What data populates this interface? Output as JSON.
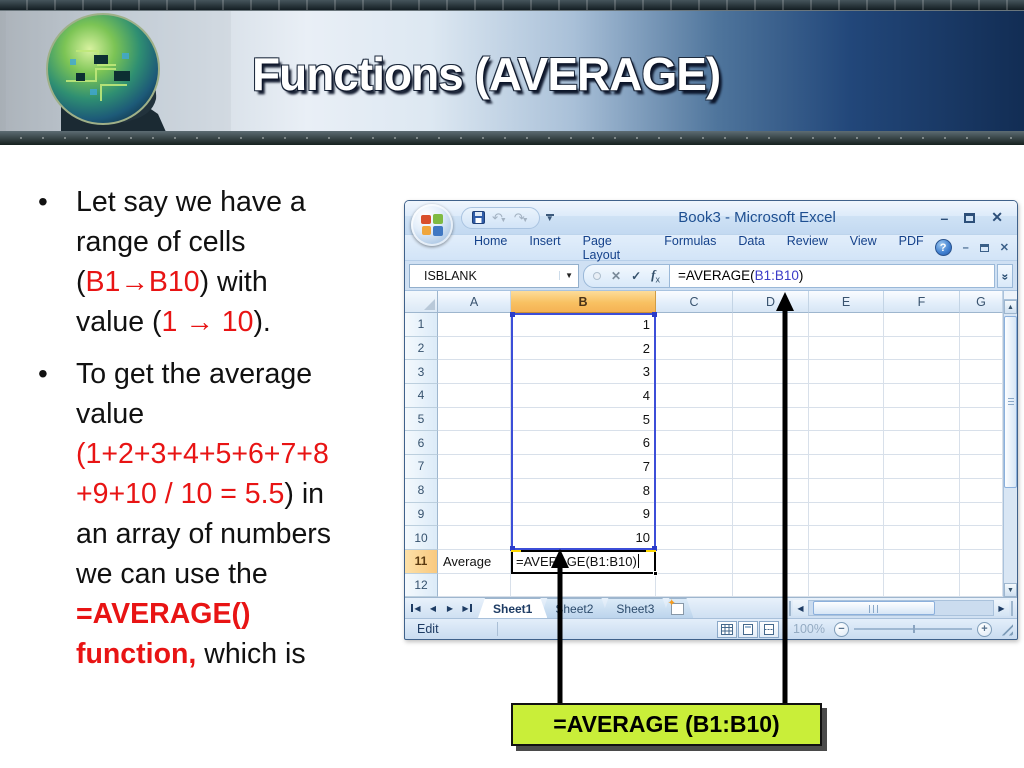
{
  "slide": {
    "title": "Functions (AVERAGE)"
  },
  "bullets": [
    {
      "lines": [
        [
          {
            "t": "Let say we have a",
            "c": "k"
          }
        ],
        [
          {
            "t": "range of cells",
            "c": "k"
          }
        ],
        [
          {
            "t": "(",
            "c": "k"
          },
          {
            "t": "B1→B10",
            "c": "r"
          },
          {
            "t": ") with",
            "c": "k"
          }
        ],
        [
          {
            "t": "value (",
            "c": "k"
          },
          {
            "t": "1 → 10",
            "c": "r"
          },
          {
            "t": ").",
            "c": "k"
          }
        ]
      ]
    },
    {
      "lines": [
        [
          {
            "t": "To get the average",
            "c": "k"
          }
        ],
        [
          {
            "t": "value",
            "c": "k"
          }
        ],
        [
          {
            "t": "(1+2+3+4+5+6+7+8",
            "c": "r"
          }
        ],
        [
          {
            "t": "+9+10 / 10 = 5.5",
            "c": "r"
          },
          {
            "t": ") in",
            "c": "k"
          }
        ],
        [
          {
            "t": "an array of numbers",
            "c": "k"
          }
        ],
        [
          {
            "t": "we can use the",
            "c": "k"
          }
        ],
        [
          {
            "t": "=AVERAGE()",
            "c": "rb"
          }
        ],
        [
          {
            "t": "function,",
            "c": "rb"
          },
          {
            "t": " which is",
            "c": "k"
          }
        ]
      ]
    }
  ],
  "excel": {
    "window_title": "Book3 - Microsoft Excel",
    "ribbon_tabs": [
      "Home",
      "Insert",
      "Page Layout",
      "Formulas",
      "Data",
      "Review",
      "View",
      "PDF"
    ],
    "name_box": "ISBLANK",
    "formula": {
      "prefix": "=AVERAGE(",
      "range": "B1:B10",
      "suffix": ")"
    },
    "columns": [
      "A",
      "B",
      "C",
      "D",
      "E",
      "F",
      "G"
    ],
    "selected_column": "B",
    "selected_row": "11",
    "row_count": 12,
    "b_values": [
      "1",
      "2",
      "3",
      "4",
      "5",
      "6",
      "7",
      "8",
      "9",
      "10"
    ],
    "a11_label": "Average",
    "b11_formula": "=AVERAGE(B1:B10)",
    "sheet_tabs": [
      "Sheet1",
      "Sheet2",
      "Sheet3"
    ],
    "active_sheet": "Sheet1",
    "status": {
      "mode": "Edit",
      "zoom": "100%"
    }
  },
  "callout": {
    "text": "=AVERAGE (B1:B10)"
  },
  "icons": {
    "dropdown": "▼",
    "undo": "↶",
    "redo": "↷",
    "cancel": "✕",
    "enter": "✓",
    "fx_f": "f",
    "fx_x": "x",
    "help": "?",
    "minimize": "–",
    "close": "✕",
    "chevron_double": "»",
    "up": "▲",
    "down": "▼",
    "left": "◀",
    "right": "▶",
    "sparkle": "✦"
  },
  "colors": {
    "red_text": "#e81414",
    "callout_bg": "#c9ee39",
    "range_border": "#3c4ed8",
    "selected_header_orange": "#f8c162",
    "title_navy": "#1e4f91"
  }
}
